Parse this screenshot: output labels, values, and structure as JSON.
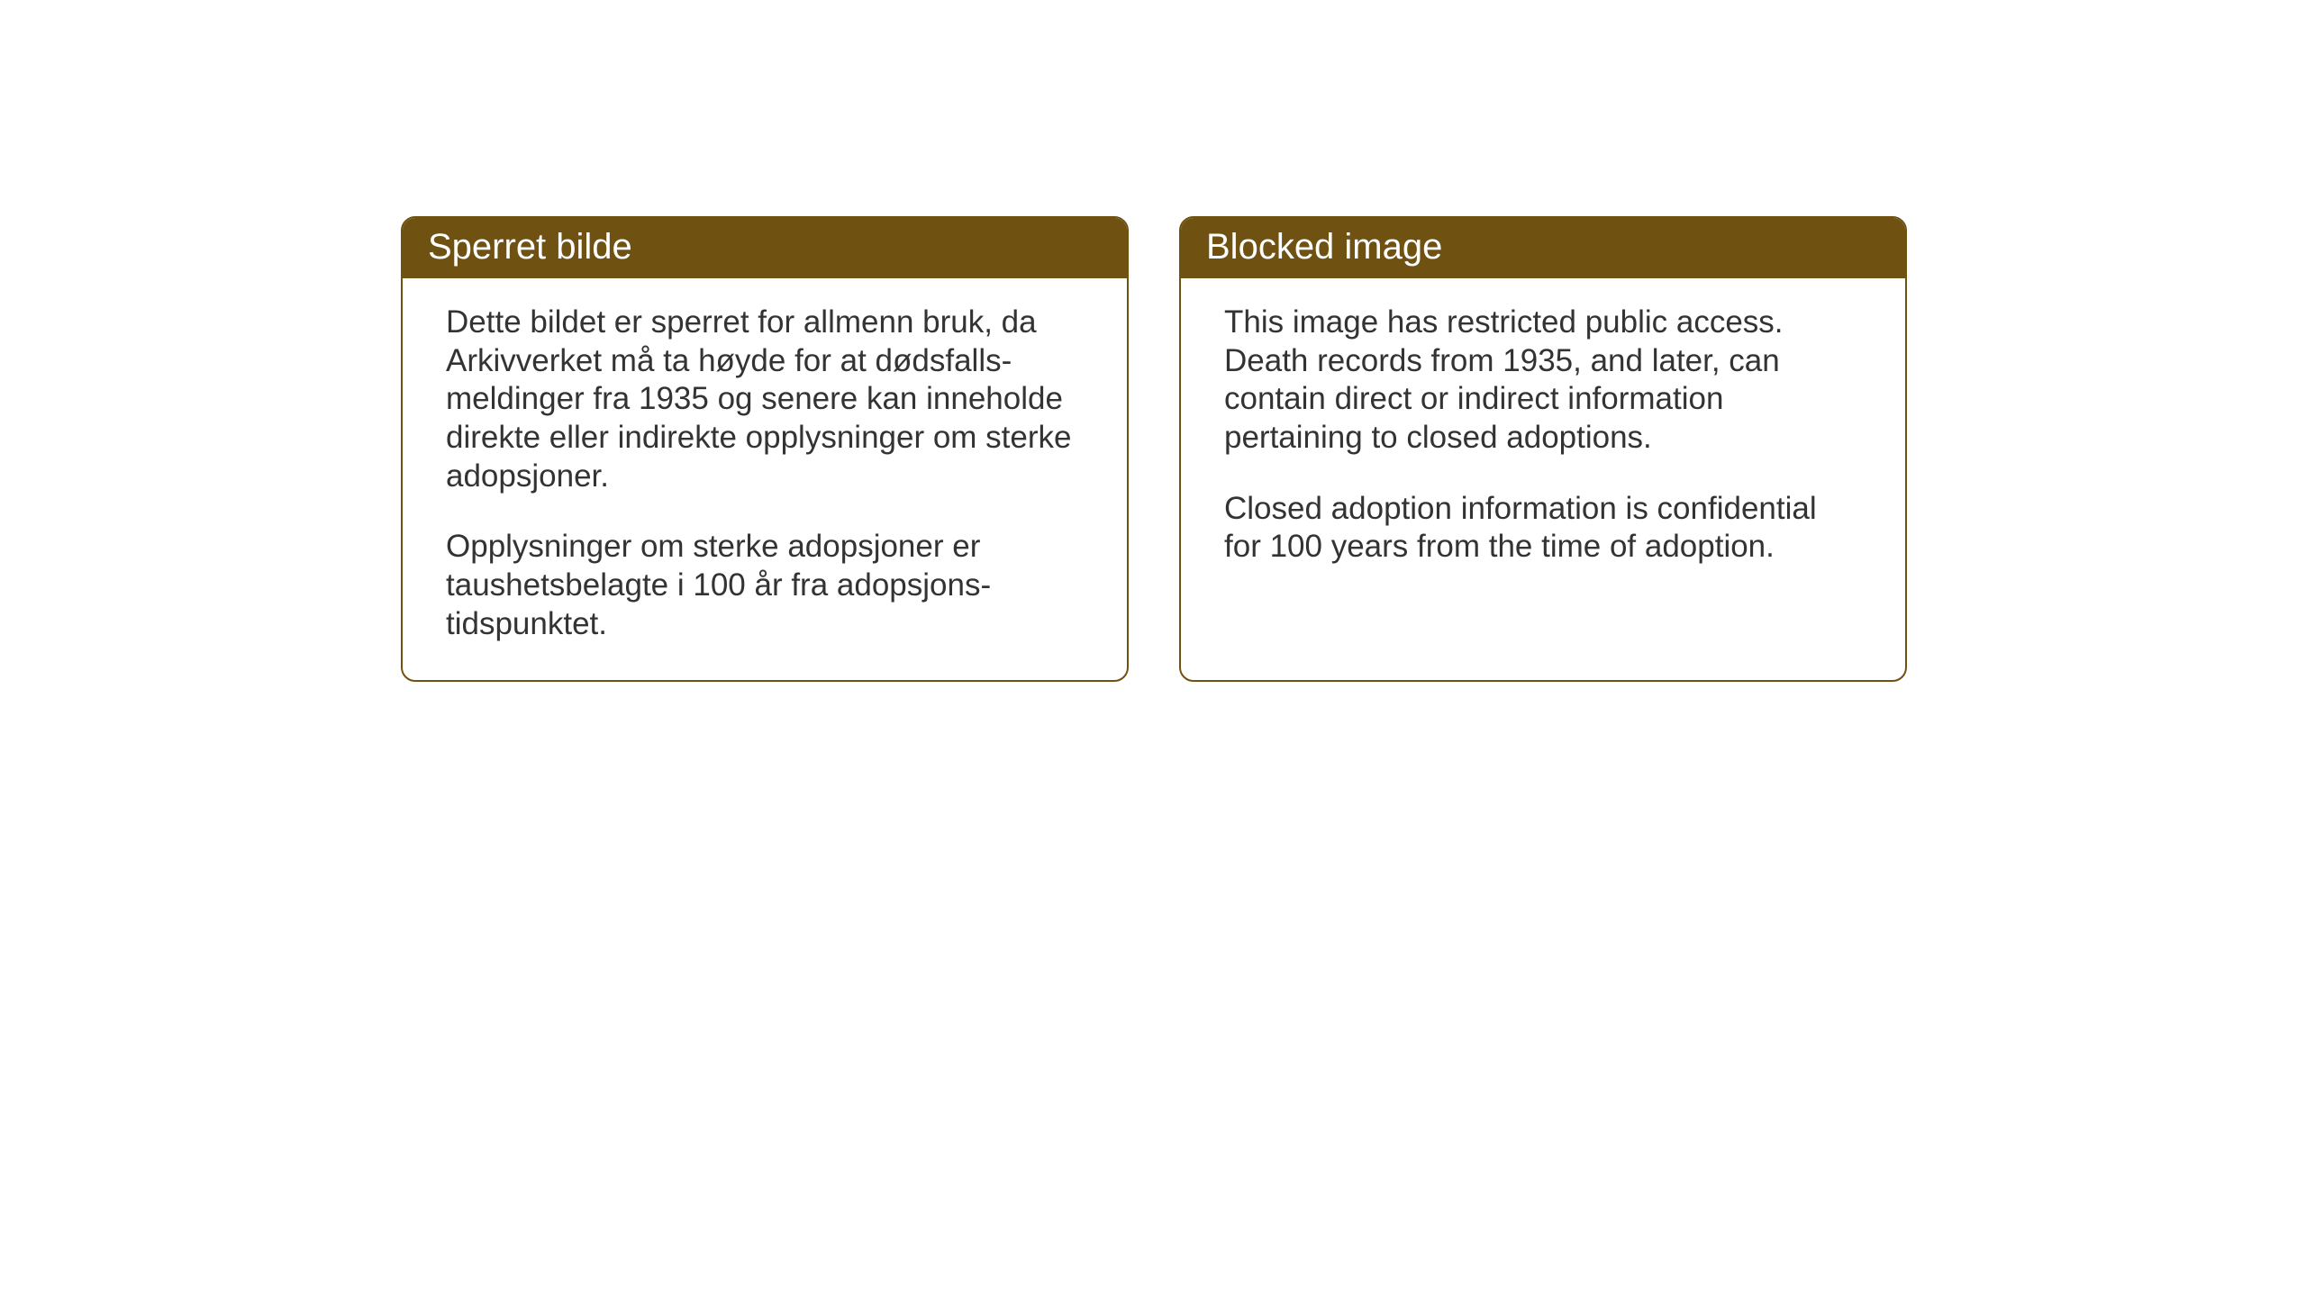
{
  "layout": {
    "background_color": "#ffffff",
    "card_border_color": "#6f5111",
    "card_border_radius": 16,
    "header_bg_color": "#6f5111",
    "header_text_color": "#ffffff",
    "body_text_color": "#333333",
    "header_fontsize": 40,
    "body_fontsize": 35
  },
  "cards": {
    "no": {
      "title": "Sperret bilde",
      "para1": "Dette bildet er sperret for allmenn bruk, da Arkivverket må ta høyde for at dødsfalls-meldinger fra 1935 og senere kan inneholde direkte eller indirekte opplysninger om sterke adopsjoner.",
      "para2": "Opplysninger om sterke adopsjoner er taushetsbelagte i 100 år fra adopsjons-tidspunktet."
    },
    "en": {
      "title": "Blocked image",
      "para1": "This image has restricted public access. Death records from 1935, and later, can contain direct or indirect information pertaining to closed adoptions.",
      "para2": "Closed adoption information is confidential for 100 years from the time of adoption."
    }
  }
}
